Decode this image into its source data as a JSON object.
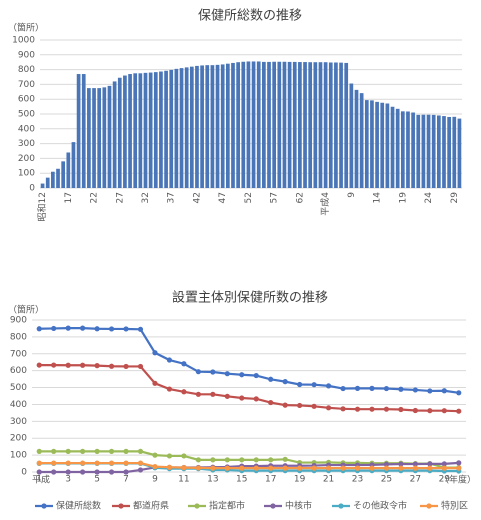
{
  "chart_data": [
    {
      "type": "bar",
      "title": "保健所総数の推移",
      "y_label": "（箇所）",
      "categories": [
        "昭和12",
        null,
        null,
        null,
        null,
        "17",
        null,
        null,
        null,
        null,
        "22",
        null,
        null,
        null,
        null,
        "27",
        null,
        null,
        null,
        null,
        "32",
        null,
        null,
        null,
        null,
        "37",
        null,
        null,
        null,
        null,
        "42",
        null,
        null,
        null,
        null,
        "47",
        null,
        null,
        null,
        null,
        "52",
        null,
        null,
        null,
        null,
        "57",
        null,
        null,
        null,
        null,
        "62",
        null,
        null,
        null,
        null,
        "平成4",
        null,
        null,
        null,
        null,
        "9",
        null,
        null,
        null,
        null,
        "14",
        null,
        null,
        null,
        null,
        "19",
        null,
        null,
        null,
        null,
        "24",
        null,
        null,
        null,
        null,
        "29",
        null
      ],
      "values": [
        30,
        70,
        110,
        130,
        180,
        240,
        310,
        770,
        770,
        675,
        675,
        675,
        680,
        690,
        720,
        745,
        760,
        770,
        775,
        775,
        778,
        780,
        783,
        787,
        792,
        798,
        805,
        810,
        815,
        820,
        825,
        828,
        830,
        830,
        832,
        835,
        840,
        845,
        850,
        853,
        855,
        855,
        855,
        852,
        852,
        853,
        853,
        853,
        852,
        852,
        851,
        851,
        850,
        850,
        850,
        850,
        848,
        848,
        847,
        845,
        706,
        663,
        641,
        594,
        592,
        582,
        576,
        571,
        549,
        535,
        518,
        517,
        510,
        494,
        495,
        495,
        494,
        490,
        486,
        480,
        481,
        469
      ],
      "color": "#4a76b8",
      "ylim": [
        0,
        1000
      ],
      "yticks": [
        0,
        100,
        200,
        300,
        400,
        500,
        600,
        700,
        800,
        900,
        1000
      ],
      "grid": true
    },
    {
      "type": "line",
      "title": "設置主体別保健所数の推移",
      "y_label": "（箇所）",
      "x_label": "（年度）",
      "annotation": "平成",
      "categories": [
        "1",
        null,
        "3",
        null,
        "5",
        null,
        "7",
        null,
        "9",
        null,
        "11",
        null,
        "13",
        null,
        "15",
        null,
        "17",
        null,
        "19",
        null,
        "21",
        null,
        "23",
        null,
        "25",
        null,
        "27",
        null,
        "29",
        null
      ],
      "series": [
        {
          "name": "保健所総数",
          "color": "#4472c4",
          "values": [
            848,
            850,
            852,
            852,
            848,
            847,
            847,
            845,
            706,
            663,
            641,
            594,
            592,
            582,
            576,
            571,
            549,
            535,
            518,
            517,
            510,
            494,
            495,
            495,
            494,
            490,
            486,
            480,
            481,
            469
          ]
        },
        {
          "name": "都道府県",
          "color": "#c0504d",
          "values": [
            633,
            633,
            632,
            632,
            630,
            626,
            625,
            625,
            525,
            491,
            475,
            460,
            460,
            448,
            438,
            433,
            411,
            396,
            394,
            389,
            380,
            374,
            372,
            372,
            372,
            370,
            364,
            363,
            363,
            360
          ]
        },
        {
          "name": "指定都市",
          "color": "#9bbb59",
          "values": [
            122,
            122,
            122,
            122,
            122,
            122,
            122,
            122,
            100,
            95,
            95,
            72,
            72,
            72,
            72,
            72,
            72,
            75,
            56,
            56,
            57,
            54,
            54,
            52,
            52,
            52,
            50,
            50,
            26,
            26
          ]
        },
        {
          "name": "中核市",
          "color": "#8064a2",
          "values": [
            0,
            0,
            0,
            0,
            0,
            0,
            0,
            12,
            27,
            27,
            27,
            27,
            28,
            30,
            35,
            35,
            37,
            37,
            37,
            38,
            41,
            41,
            41,
            42,
            45,
            47,
            47,
            48,
            48,
            54
          ]
        },
        {
          "name": "その他政令市",
          "color": "#4bacc6",
          "values": [
            51,
            51,
            51,
            51,
            51,
            51,
            51,
            51,
            25,
            20,
            20,
            20,
            12,
            12,
            8,
            8,
            8,
            8,
            8,
            8,
            8,
            8,
            8,
            8,
            8,
            8,
            8,
            8,
            6,
            6
          ]
        },
        {
          "name": "特別区",
          "color": "#f79646",
          "values": [
            53,
            53,
            53,
            53,
            53,
            53,
            53,
            53,
            32,
            28,
            26,
            24,
            23,
            23,
            23,
            23,
            23,
            23,
            23,
            23,
            23,
            23,
            23,
            23,
            23,
            23,
            23,
            23,
            23,
            23
          ]
        }
      ],
      "ylim": [
        0,
        900
      ],
      "yticks": [
        0,
        100,
        200,
        300,
        400,
        500,
        600,
        700,
        800,
        900
      ],
      "grid": true,
      "legend": "bottom"
    }
  ]
}
